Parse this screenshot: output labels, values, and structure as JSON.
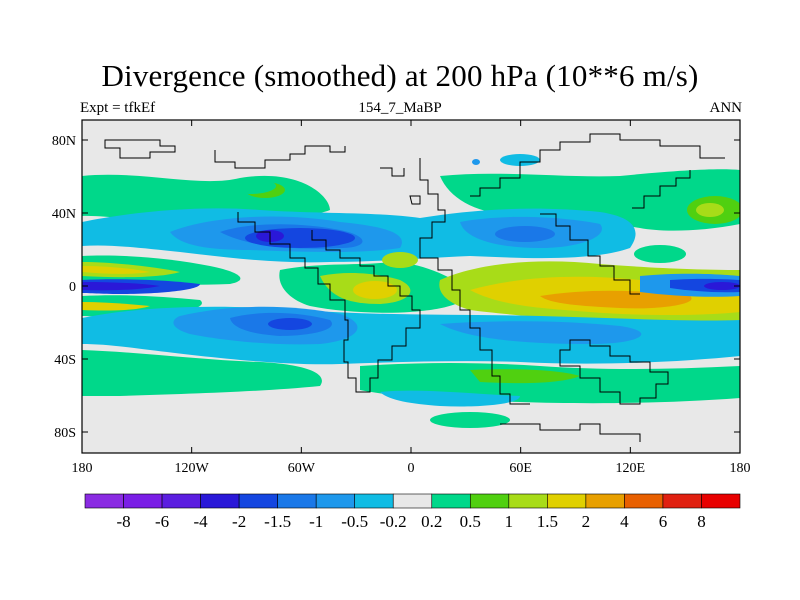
{
  "title": "Divergence (smoothed) at 200 hPa (10**6 m/s)",
  "subtitle_left": "Expt = tfkEf",
  "subtitle_center": "154_7_MaBP",
  "subtitle_right": "ANN",
  "x_ticks": [
    "180",
    "120W",
    "60W",
    "0",
    "60E",
    "120E",
    "180"
  ],
  "y_ticks": [
    "80N",
    "40N",
    "0",
    "40S",
    "80S"
  ],
  "colorbar": {
    "colors": [
      "#8a2be2",
      "#7a1ee6",
      "#5b1ee0",
      "#2a18d8",
      "#1446e0",
      "#1a78e8",
      "#1e98ec",
      "#10bce4",
      "#e8e8e8",
      "#00d88a",
      "#50d010",
      "#a8dc18",
      "#e0d000",
      "#e8a000",
      "#e86000",
      "#e02010",
      "#e80000"
    ],
    "labels": [
      "-8",
      "-6",
      "-4",
      "-2",
      "-1.5",
      "-1",
      "-0.5",
      "-0.2",
      "0.2",
      "0.5",
      "1",
      "1.5",
      "2",
      "4",
      "6",
      "8"
    ]
  }
}
